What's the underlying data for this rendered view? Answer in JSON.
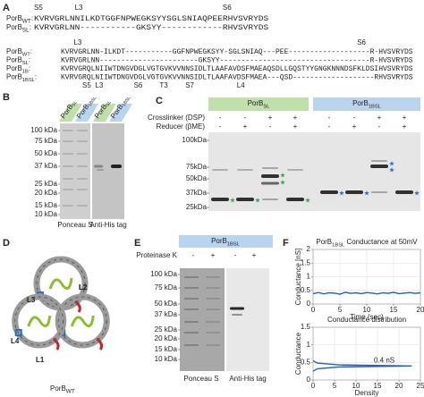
{
  "panel_a": {
    "label": "A",
    "block1": {
      "marks": [
        {
          "text": "S5",
          "color": "#333333"
        },
        {
          "text": "L3",
          "color": "#2a9d3a"
        },
        {
          "text": "S6",
          "color": "#333333"
        }
      ],
      "rows": [
        {
          "name": {
            "main": "PorB",
            "sub": "WT",
            "tail": ":"
          },
          "segments": [
            {
              "text": "KVRVGRLN",
              "color": "#222222"
            },
            {
              "text": "NILKDTGGFNPWEGKSYYSGLSNIAQPEE",
              "color": "#2a9d3a"
            },
            {
              "text": "RHVSVRYDS",
              "color": "#222222"
            }
          ]
        },
        {
          "name": {
            "main": "PorB",
            "sub": "SL",
            "tail": ":"
          },
          "segments": [
            {
              "text": "KVRVGRLN",
              "color": "#222222"
            },
            {
              "text": "N-----------GKSYY------------",
              "color": "#2a9d3a"
            },
            {
              "text": "RHVSVRYDS",
              "color": "#222222"
            }
          ]
        }
      ]
    },
    "block2": {
      "top_marks": [
        {
          "text": "L3",
          "color": "#2a9d3a"
        },
        {
          "text": "S6",
          "color": "#333333"
        }
      ],
      "rows": [
        {
          "name": {
            "main": "PorB",
            "sub": "WT",
            "tail": ":"
          },
          "segments": [
            {
              "text": "KVRVGRLN",
              "color": "#222222"
            },
            {
              "text": "N-ILKDT-----------GGFNPWEGKSYY-SGLSNIAQ---PEE-------------------",
              "color": "#2a9d3a"
            },
            {
              "text": "R-HVSVRYDS",
              "color": "#222222"
            }
          ]
        },
        {
          "name": {
            "main": "PorB",
            "sub": "SL",
            "tail": ":"
          },
          "segments": [
            {
              "text": "KVRVGRLN",
              "color": "#222222"
            },
            {
              "text": "N-----------------------GKSYY-----------------------------------",
              "color": "#2a9d3a"
            },
            {
              "text": "R-HVSVRYDS",
              "color": "#222222"
            }
          ]
        },
        {
          "name": {
            "main": "PorB",
            "sub": "1B",
            "tail": ":"
          },
          "segments": [
            {
              "text": "KVRVGRQ",
              "color": "#222222"
            },
            {
              "text": "LNIIWTDNGVDGL",
              "color": "#d0302a"
            },
            {
              "text": "VGTGVKVVNN",
              "color": "#2f6fbf"
            },
            {
              "text": "SIDL",
              "color": "#d0302a"
            },
            {
              "text": "TLAAFAVDSF",
              "color": "#2f6fbf"
            },
            {
              "text": "MAEAQSDLLGQSTYYGNGKNNNDSFKLDSI",
              "color": "#d0302a"
            },
            {
              "text": "HVSVRYDS",
              "color": "#222222"
            }
          ]
        },
        {
          "name": {
            "main": "PorB",
            "sub": "1BSL",
            "tail": ":"
          },
          "segments": [
            {
              "text": "KVRVGRQ",
              "color": "#222222"
            },
            {
              "text": "LNIIWTDNGVDGL",
              "color": "#d0302a"
            },
            {
              "text": "VGTGVKVVNN",
              "color": "#2f6fbf"
            },
            {
              "text": "SIDL",
              "color": "#d0302a"
            },
            {
              "text": "TLAAFAVDSF",
              "color": "#2f6fbf"
            },
            {
              "text": "MAEA---QSD-------------------",
              "color": "#d0302a"
            },
            {
              "text": "RHVSVRYDS",
              "color": "#222222"
            }
          ]
        }
      ],
      "bottom_marks": [
        {
          "text": "S5",
          "color": "#2f6fbf"
        },
        {
          "text": "L3",
          "color": "#d0302a"
        },
        {
          "text": "S6",
          "color": "#2f6fbf"
        },
        {
          "text": "T3",
          "color": "#d0302a"
        },
        {
          "text": "S7",
          "color": "#2f6fbf"
        },
        {
          "text": "L4",
          "color": "#d0302a"
        }
      ]
    }
  },
  "panel_b": {
    "label": "B",
    "tabs": [
      {
        "main": "PorB",
        "sub": "SL"
      },
      {
        "main": "PorB",
        "sub": "1BSL"
      },
      {
        "main": "PorB",
        "sub": "SL"
      },
      {
        "main": "PorB",
        "sub": "1BSL"
      }
    ],
    "mw": [
      "100 kDa",
      "75 kDa",
      "50 kDa",
      "37 kDa",
      "25 kDa",
      "20 kDa",
      "15 kDa",
      "10 kDa"
    ],
    "gels": [
      "Ponceau S",
      "Anti-His tag"
    ]
  },
  "panel_c": {
    "label": "C",
    "headers": [
      {
        "main": "PorB",
        "sub": "SL"
      },
      {
        "main": "PorB",
        "sub": "1BSL"
      }
    ],
    "crosslinker": {
      "label": "Crosslinker (DSP)",
      "color": "#7b3fa0",
      "signs": [
        "-",
        "-",
        "+",
        "+",
        "-",
        "-",
        "+",
        "+"
      ]
    },
    "reducer": {
      "label": "Reducer (βME)",
      "color": "#d99a1a",
      "signs": [
        "-",
        "+",
        "-",
        "+",
        "-",
        "+",
        "-",
        "+"
      ]
    },
    "mw": [
      "100kDa",
      "75kDa",
      "50kDa",
      "37kDa",
      "25kDa"
    ]
  },
  "panel_d": {
    "label": "D",
    "loops": [
      {
        "text": "L3",
        "color": "#8bbf2f"
      },
      {
        "text": "L2",
        "color": "#f2f2f2"
      },
      {
        "text": "L4",
        "color": "#2f6fbf"
      },
      {
        "text": "L1",
        "color": "#c0282a"
      }
    ],
    "caption": {
      "main": "PorB",
      "sub": "WT"
    }
  },
  "panel_e": {
    "label": "E",
    "header": {
      "main": "PorB",
      "sub": "1BSL"
    },
    "treatment": {
      "label": "Proteinase K",
      "color": "#7b3fa0",
      "signs": [
        "-",
        "+",
        "-",
        "+"
      ]
    },
    "mw": [
      "100 kDa",
      "75 kDa",
      "50 kDa",
      "37 kDa",
      "25 kDa",
      "20 kDa",
      "15 kDa",
      "10 kDa"
    ],
    "gels": [
      "Ponceau S",
      "Anti-His tag"
    ]
  },
  "panel_f": {
    "label": "F"
  },
  "chart_data": [
    {
      "type": "line",
      "title": {
        "main": "PorB",
        "sub": "1BSL",
        "tail": " Conductance at 50mV"
      },
      "x_label": "Time (sec)",
      "y_label": "Conductance [nS]",
      "x": [
        0,
        1,
        2,
        3,
        4,
        5,
        6,
        7,
        8,
        9,
        10,
        11,
        12,
        13,
        14,
        15,
        16,
        17,
        18,
        19,
        20
      ],
      "values": [
        0.38,
        0.42,
        0.37,
        0.41,
        0.4,
        0.36,
        0.43,
        0.39,
        0.41,
        0.38,
        0.42,
        0.4,
        0.37,
        0.41,
        0.39,
        0.43,
        0.38,
        0.4,
        0.42,
        0.39,
        0.41
      ],
      "color": "#2060c0",
      "xlim": [
        0,
        20
      ],
      "ylim": [
        0,
        2
      ],
      "xticks": [
        0,
        5,
        10,
        15,
        20
      ],
      "yticks": [
        0,
        0.5,
        1,
        1.5,
        2
      ],
      "grid": true
    },
    {
      "type": "line",
      "title": "Conductance distribution",
      "x_label": "Density",
      "y_label": "Conductance",
      "annotation": "0.4 nS",
      "x": [
        0,
        1,
        6,
        23,
        6,
        1,
        0
      ],
      "values": [
        0.25,
        0.32,
        0.37,
        0.4,
        0.43,
        0.48,
        0.55
      ],
      "color": "#2060c0",
      "xlim": [
        0,
        25
      ],
      "ylim": [
        0,
        1.5
      ],
      "xticks": [
        0,
        5,
        10,
        15,
        20,
        25
      ],
      "yticks": [
        0,
        0.5,
        1,
        1.5
      ],
      "grid": true
    }
  ]
}
